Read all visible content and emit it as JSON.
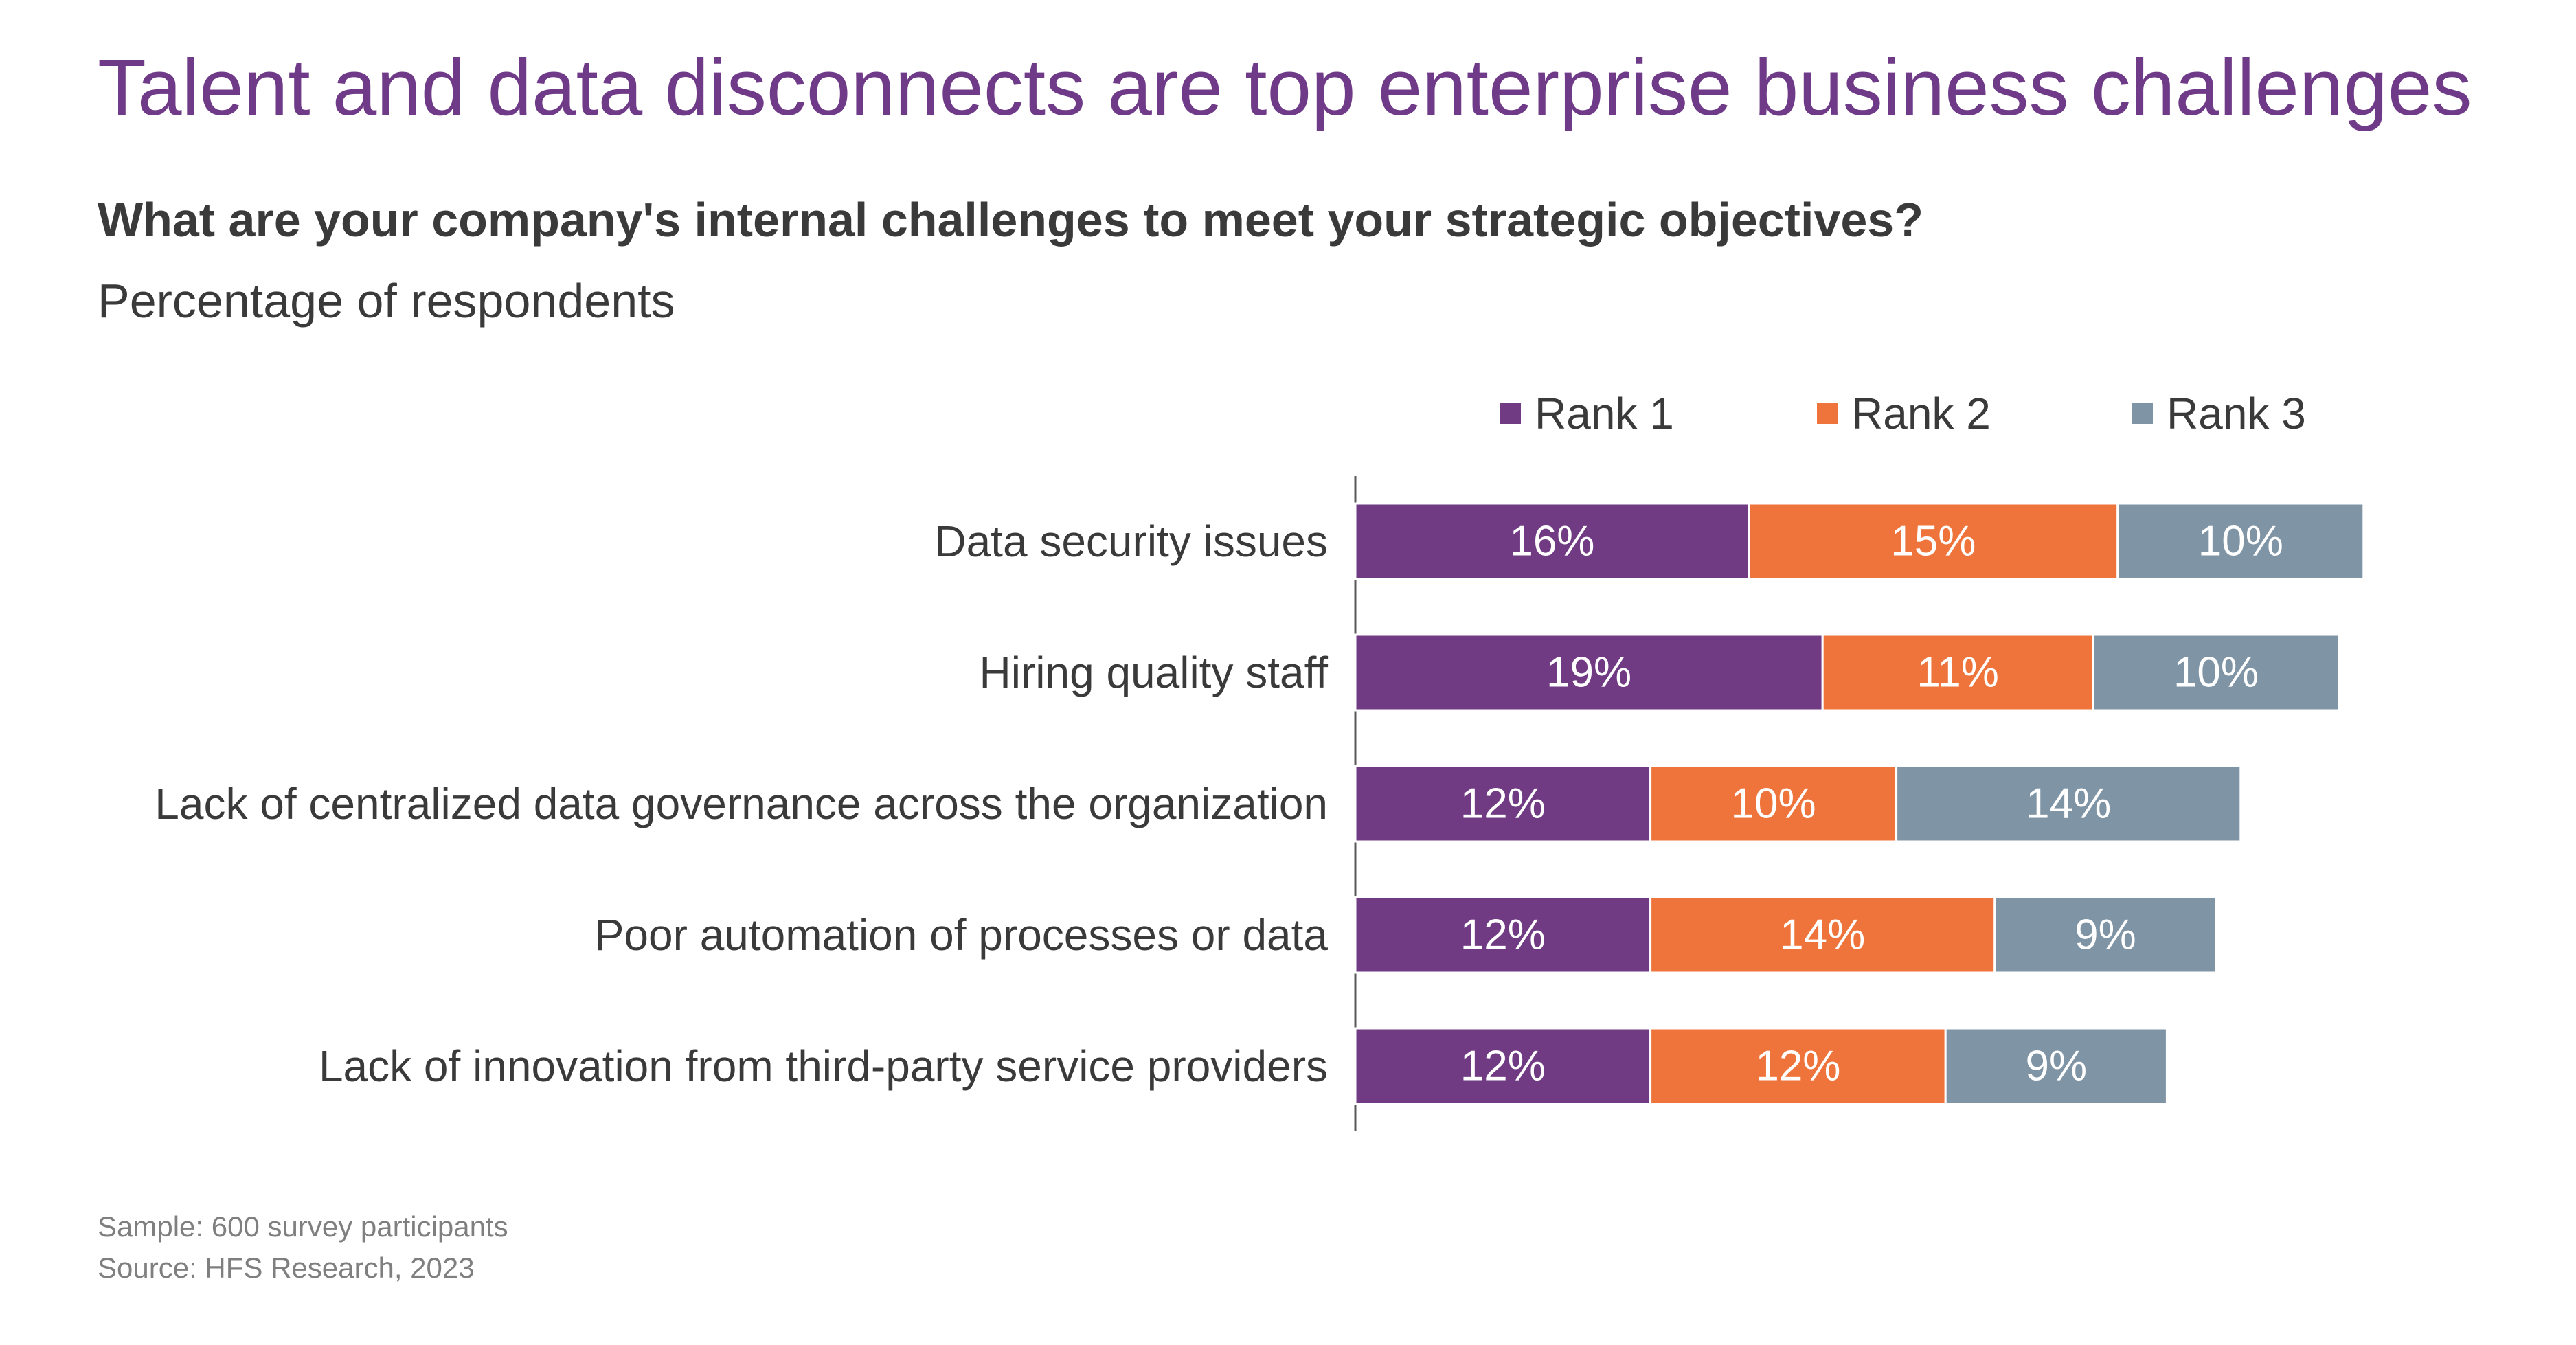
{
  "title": "Talent and data disconnects are top enterprise business challenges",
  "question": "What are your company's internal challenges to meet your strategic objectives?",
  "subtitle": "Percentage of respondents",
  "colors": {
    "title": "#6f3a87",
    "rank1": "#713b84",
    "rank2": "#ef743c",
    "rank3": "#7f94a4"
  },
  "chart_data": {
    "type": "bar",
    "orientation": "horizontal",
    "stacked": true,
    "categories": [
      "Data security issues",
      "Hiring quality staff",
      "Lack of centralized data governance across the organization",
      "Poor automation of processes or data",
      "Lack of innovation from third-party service providers"
    ],
    "series": [
      {
        "name": "Rank 1",
        "color": "#713b84",
        "values": [
          16,
          19,
          12,
          12,
          12
        ],
        "labels": [
          "16%",
          "19%",
          "12%",
          "12%",
          "12%"
        ]
      },
      {
        "name": "Rank 2",
        "color": "#ef743c",
        "values": [
          15,
          11,
          10,
          14,
          12
        ],
        "labels": [
          "15%",
          "11%",
          "10%",
          "14%",
          "12%"
        ]
      },
      {
        "name": "Rank 3",
        "color": "#7f94a4",
        "values": [
          10,
          10,
          14,
          9,
          9
        ],
        "labels": [
          "10%",
          "10%",
          "14%",
          "9%",
          "9%"
        ]
      }
    ],
    "legend_position": "top",
    "grid": false
  },
  "footnotes": {
    "sample": "Sample: 600 survey participants",
    "source": "Source: HFS Research, 2023"
  }
}
